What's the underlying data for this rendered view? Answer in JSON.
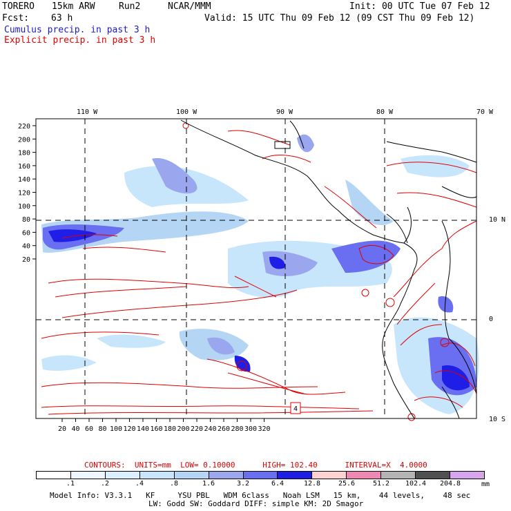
{
  "header": {
    "model": "TORERO",
    "resolution": "15km ARW",
    "run": "Run2",
    "center": "NCAR/MMM",
    "init": "Init: 00 UTC Tue 07 Feb 12",
    "fcst_label": "Fcst:",
    "fcst_value": "63 h",
    "valid": "Valid: 15 UTC Thu 09 Feb 12 (09 CST Thu 09 Feb 12)",
    "field1": "Cumulus precip. in past 3 h",
    "field2": "Explicit precip. in past 3 h"
  },
  "colors": {
    "field1": "#1a1ad0",
    "field2": "#e00000",
    "grid": "#000000",
    "contour": "#e00000"
  },
  "map": {
    "lon_labels": [
      "110 W",
      "100 W",
      "90 W",
      "80 W",
      "70 W"
    ],
    "lat_labels": [
      "10 N",
      "0",
      "10 S"
    ],
    "y_ticks": [
      "220",
      "200",
      "180",
      "160",
      "140",
      "120",
      "100",
      "80",
      "60",
      "40",
      "20"
    ],
    "x_ticks": [
      "20",
      "40",
      "60",
      "80",
      "100",
      "120",
      "140",
      "160",
      "180",
      "200",
      "220",
      "240",
      "260",
      "280",
      "300",
      "320"
    ],
    "inset_label": "4"
  },
  "contour_info": {
    "text": "CONTOURS:  UNITS=mm  LOW= 0.10000      HIGH= 102.40      INTERVAL=X  4.0000"
  },
  "legend": {
    "labels": [
      ".1",
      ".2",
      ".4",
      ".8",
      "1.6",
      "3.2",
      "6.4",
      "12.8",
      "25.6",
      "51.2",
      "102.4",
      "204.8"
    ],
    "unit": "mm",
    "colors": [
      "#ffffff",
      "#eef6ff",
      "#dcefff",
      "#c8e6fb",
      "#b4d6f4",
      "#9aa6ee",
      "#6a6ef0",
      "#1e1ee6",
      "#fcd2d2",
      "#f088b4",
      "#b4b4b4",
      "#505050",
      "#d8a4ee"
    ]
  },
  "footer": {
    "line1": "Model Info: V3.3.1   KF     YSU PBL   WDM 6class   Noah LSM   15 km,    44 levels,    48 sec",
    "line2": "LW: Godd SW: Goddard DIFF: simple KM: 2D Smagor"
  }
}
